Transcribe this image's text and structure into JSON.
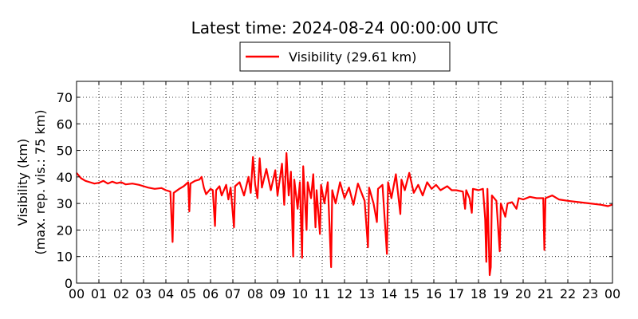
{
  "chart_data": {
    "type": "line",
    "title": "Latest time: 2024-08-24 00:00:00 UTC",
    "xlabel": "",
    "ylabel_line1": "Visibility (km)",
    "ylabel_line2": "(max. rep. vis.: 75 km)",
    "xlim": [
      0,
      24
    ],
    "ylim": [
      0,
      76
    ],
    "grid": true,
    "legend": {
      "position": "top-center",
      "label": "Visibility (29.61 km)"
    },
    "x_ticks": [
      "00",
      "01",
      "02",
      "03",
      "04",
      "05",
      "06",
      "07",
      "08",
      "09",
      "10",
      "11",
      "12",
      "13",
      "14",
      "15",
      "16",
      "17",
      "18",
      "19",
      "20",
      "21",
      "22",
      "23",
      "00"
    ],
    "y_ticks": [
      "0",
      "10",
      "20",
      "30",
      "40",
      "50",
      "60",
      "70"
    ],
    "series": [
      {
        "name": "Visibility (29.61 km)",
        "color": "#ff0000",
        "points": [
          [
            0.0,
            41.5
          ],
          [
            0.1,
            40.5
          ],
          [
            0.2,
            39.5
          ],
          [
            0.4,
            38.5
          ],
          [
            0.6,
            38.0
          ],
          [
            0.8,
            37.5
          ],
          [
            1.0,
            37.8
          ],
          [
            1.2,
            38.5
          ],
          [
            1.4,
            37.5
          ],
          [
            1.6,
            38.2
          ],
          [
            1.8,
            37.6
          ],
          [
            2.0,
            38.0
          ],
          [
            2.2,
            37.2
          ],
          [
            2.5,
            37.5
          ],
          [
            2.8,
            37.0
          ],
          [
            3.0,
            36.5
          ],
          [
            3.2,
            36.0
          ],
          [
            3.5,
            35.5
          ],
          [
            3.8,
            35.8
          ],
          [
            4.0,
            35.0
          ],
          [
            4.2,
            34.5
          ],
          [
            4.3,
            15.5
          ],
          [
            4.35,
            34.0
          ],
          [
            4.6,
            35.5
          ],
          [
            4.8,
            36.5
          ],
          [
            5.0,
            38.0
          ],
          [
            5.05,
            27.0
          ],
          [
            5.1,
            37.5
          ],
          [
            5.3,
            38.5
          ],
          [
            5.5,
            39.0
          ],
          [
            5.6,
            40.0
          ],
          [
            5.7,
            36.0
          ],
          [
            5.8,
            33.5
          ],
          [
            6.0,
            35.5
          ],
          [
            6.1,
            35.0
          ],
          [
            6.2,
            21.5
          ],
          [
            6.25,
            35.0
          ],
          [
            6.4,
            36.5
          ],
          [
            6.5,
            33.0
          ],
          [
            6.7,
            37.0
          ],
          [
            6.8,
            31.5
          ],
          [
            6.9,
            36.0
          ],
          [
            7.05,
            21.0
          ],
          [
            7.1,
            36.5
          ],
          [
            7.3,
            38.0
          ],
          [
            7.5,
            33.0
          ],
          [
            7.7,
            40.0
          ],
          [
            7.8,
            34.0
          ],
          [
            7.9,
            47.5
          ],
          [
            8.0,
            37.0
          ],
          [
            8.1,
            32.0
          ],
          [
            8.2,
            47.0
          ],
          [
            8.3,
            36.0
          ],
          [
            8.5,
            43.0
          ],
          [
            8.7,
            35.0
          ],
          [
            8.9,
            42.5
          ],
          [
            9.0,
            33.0
          ],
          [
            9.2,
            45.0
          ],
          [
            9.3,
            29.5
          ],
          [
            9.4,
            49.0
          ],
          [
            9.5,
            33.0
          ],
          [
            9.6,
            42.0
          ],
          [
            9.7,
            10.0
          ],
          [
            9.75,
            39.0
          ],
          [
            9.9,
            28.0
          ],
          [
            10.0,
            38.0
          ],
          [
            10.1,
            9.5
          ],
          [
            10.15,
            44.0
          ],
          [
            10.3,
            20.0
          ],
          [
            10.35,
            38.0
          ],
          [
            10.5,
            32.0
          ],
          [
            10.6,
            41.0
          ],
          [
            10.7,
            21.0
          ],
          [
            10.75,
            35.0
          ],
          [
            10.9,
            18.5
          ],
          [
            10.95,
            37.0
          ],
          [
            11.1,
            30.0
          ],
          [
            11.25,
            38.0
          ],
          [
            11.4,
            6.0
          ],
          [
            11.45,
            35.0
          ],
          [
            11.6,
            30.0
          ],
          [
            11.8,
            38.0
          ],
          [
            12.0,
            32.0
          ],
          [
            12.2,
            36.0
          ],
          [
            12.4,
            29.5
          ],
          [
            12.6,
            37.5
          ],
          [
            12.9,
            31.0
          ],
          [
            13.05,
            13.5
          ],
          [
            13.1,
            36.0
          ],
          [
            13.3,
            30.0
          ],
          [
            13.45,
            23.0
          ],
          [
            13.5,
            35.5
          ],
          [
            13.7,
            37.0
          ],
          [
            13.9,
            11.0
          ],
          [
            13.95,
            38.0
          ],
          [
            14.1,
            32.0
          ],
          [
            14.3,
            41.0
          ],
          [
            14.5,
            26.0
          ],
          [
            14.55,
            39.0
          ],
          [
            14.7,
            35.0
          ],
          [
            14.9,
            41.5
          ],
          [
            15.1,
            34.0
          ],
          [
            15.3,
            37.0
          ],
          [
            15.5,
            33.0
          ],
          [
            15.7,
            38.0
          ],
          [
            15.9,
            35.5
          ],
          [
            16.1,
            37.0
          ],
          [
            16.3,
            35.0
          ],
          [
            16.6,
            36.5
          ],
          [
            16.8,
            35.0
          ],
          [
            17.0,
            35.0
          ],
          [
            17.3,
            34.5
          ],
          [
            17.4,
            28.0
          ],
          [
            17.45,
            35.0
          ],
          [
            17.6,
            32.0
          ],
          [
            17.7,
            26.5
          ],
          [
            17.75,
            35.5
          ],
          [
            18.0,
            35.0
          ],
          [
            18.2,
            35.5
          ],
          [
            18.3,
            24.0
          ],
          [
            18.35,
            8.0
          ],
          [
            18.4,
            35.5
          ],
          [
            18.5,
            3.0
          ],
          [
            18.55,
            6.0
          ],
          [
            18.6,
            33.0
          ],
          [
            18.8,
            31.0
          ],
          [
            18.95,
            12.0
          ],
          [
            19.0,
            30.0
          ],
          [
            19.2,
            25.0
          ],
          [
            19.3,
            30.0
          ],
          [
            19.5,
            30.5
          ],
          [
            19.7,
            28.0
          ],
          [
            19.8,
            32.0
          ],
          [
            20.0,
            31.5
          ],
          [
            20.3,
            32.5
          ],
          [
            20.6,
            32.0
          ],
          [
            20.9,
            32.0
          ],
          [
            20.95,
            12.5
          ],
          [
            21.0,
            32.0
          ],
          [
            21.3,
            33.0
          ],
          [
            21.6,
            31.5
          ],
          [
            22.0,
            31.0
          ],
          [
            22.5,
            30.5
          ],
          [
            23.0,
            30.0
          ],
          [
            23.5,
            29.5
          ],
          [
            23.8,
            29.0
          ],
          [
            24.0,
            29.6
          ]
        ]
      }
    ]
  }
}
